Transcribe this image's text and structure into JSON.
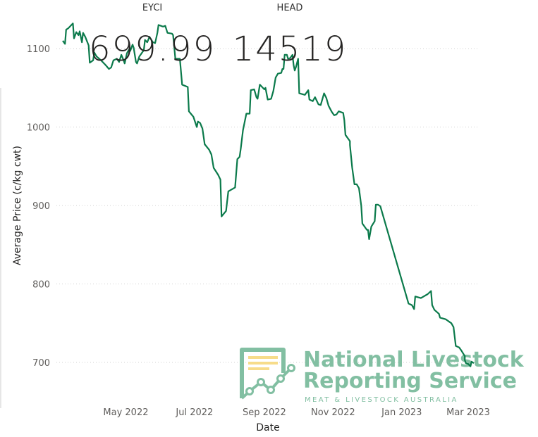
{
  "kpis": [
    {
      "label": "EYCI",
      "value": "699.99"
    },
    {
      "label": "HEAD",
      "value": "14519"
    }
  ],
  "logo": {
    "line1": "National Livestock",
    "line2": "Reporting Service",
    "tagline": "MEAT & LIVESTOCK AUSTRALIA"
  },
  "colors": {
    "line": "#0b7a4b",
    "logo": "#82bfa2",
    "logo_bars": "#f7dc8a",
    "grid": "#d0d0d0",
    "axis_text": "#605e5c"
  },
  "chart_data": {
    "type": "line",
    "xlabel": "Date",
    "ylabel": "Average Price (c/kg cwt)",
    "x_unit": "days since 2022-05-01",
    "xlim": [
      -56,
      309
    ],
    "ylim": [
      690,
      1140
    ],
    "yticks": [
      700,
      800,
      900,
      1000,
      1100
    ],
    "xticks": [
      {
        "label": "May 2022",
        "x": 0
      },
      {
        "label": "Jul 2022",
        "x": 61
      },
      {
        "label": "Sep 2022",
        "x": 123
      },
      {
        "label": "Nov 2022",
        "x": 184
      },
      {
        "label": "Jan 2023",
        "x": 245
      },
      {
        "label": "Mar 2023",
        "x": 304
      }
    ],
    "grid": true,
    "series": [
      {
        "name": "Average Price",
        "points": [
          [
            -56,
            1110
          ],
          [
            -54,
            1106
          ],
          [
            -53,
            1124
          ],
          [
            -51,
            1126
          ],
          [
            -47,
            1132
          ],
          [
            -46,
            1113
          ],
          [
            -44,
            1121
          ],
          [
            -42,
            1117
          ],
          [
            -41,
            1122
          ],
          [
            -39,
            1108
          ],
          [
            -38,
            1120
          ],
          [
            -36,
            1115
          ],
          [
            -33,
            1104
          ],
          [
            -32,
            1082
          ],
          [
            -29,
            1085
          ],
          [
            -28,
            1095
          ],
          [
            -26,
            1090
          ],
          [
            -22,
            1085
          ],
          [
            -18,
            1079
          ],
          [
            -15,
            1074
          ],
          [
            -13,
            1076
          ],
          [
            -11,
            1085
          ],
          [
            -8,
            1087
          ],
          [
            -6,
            1083
          ],
          [
            -4,
            1092
          ],
          [
            -2,
            1085
          ],
          [
            -1,
            1081
          ],
          [
            1,
            1094
          ],
          [
            3,
            1099
          ],
          [
            4,
            1097
          ],
          [
            6,
            1105
          ],
          [
            7,
            1101
          ],
          [
            9,
            1083
          ],
          [
            10,
            1081
          ],
          [
            12,
            1090
          ],
          [
            16,
            1098
          ],
          [
            17,
            1111
          ],
          [
            19,
            1108
          ],
          [
            21,
            1115
          ],
          [
            24,
            1108
          ],
          [
            26,
            1107
          ],
          [
            28,
            1120
          ],
          [
            29,
            1130
          ],
          [
            33,
            1128
          ],
          [
            35,
            1129
          ],
          [
            37,
            1120
          ],
          [
            41,
            1119
          ],
          [
            42,
            1117
          ],
          [
            44,
            1087
          ],
          [
            48,
            1087
          ],
          [
            50,
            1054
          ],
          [
            55,
            1051
          ],
          [
            56,
            1020
          ],
          [
            60,
            1013
          ],
          [
            63,
            1000
          ],
          [
            64,
            1007
          ],
          [
            66,
            1005
          ],
          [
            68,
            998
          ],
          [
            70,
            978
          ],
          [
            74,
            971
          ],
          [
            76,
            965
          ],
          [
            78,
            948
          ],
          [
            82,
            939
          ],
          [
            84,
            933
          ],
          [
            85,
            886
          ],
          [
            89,
            893
          ],
          [
            91,
            918
          ],
          [
            97,
            923
          ],
          [
            99,
            959
          ],
          [
            101,
            962
          ],
          [
            102,
            972
          ],
          [
            104,
            996
          ],
          [
            105,
            1003
          ],
          [
            107,
            1017
          ],
          [
            110,
            1017
          ],
          [
            111,
            1047
          ],
          [
            114,
            1048
          ],
          [
            116,
            1038
          ],
          [
            117,
            1036
          ],
          [
            119,
            1054
          ],
          [
            123,
            1048
          ],
          [
            124,
            1050
          ],
          [
            126,
            1035
          ],
          [
            129,
            1036
          ],
          [
            131,
            1046
          ],
          [
            133,
            1063
          ],
          [
            135,
            1068
          ],
          [
            138,
            1069
          ],
          [
            139,
            1074
          ],
          [
            140,
            1074
          ],
          [
            141,
            1092
          ],
          [
            143,
            1092
          ],
          [
            144,
            1087
          ],
          [
            146,
            1088
          ],
          [
            148,
            1092
          ],
          [
            149,
            1079
          ],
          [
            150,
            1072
          ],
          [
            151,
            1076
          ],
          [
            153,
            1087
          ],
          [
            154,
            1043
          ],
          [
            159,
            1041
          ],
          [
            162,
            1047
          ],
          [
            163,
            1035
          ],
          [
            166,
            1033
          ],
          [
            168,
            1038
          ],
          [
            171,
            1029
          ],
          [
            173,
            1028
          ],
          [
            176,
            1043
          ],
          [
            178,
            1037
          ],
          [
            180,
            1027
          ],
          [
            183,
            1019
          ],
          [
            185,
            1015
          ],
          [
            187,
            1016
          ],
          [
            189,
            1020
          ],
          [
            193,
            1018
          ],
          [
            194,
            1009
          ],
          [
            195,
            990
          ],
          [
            199,
            982
          ],
          [
            199,
            977
          ],
          [
            201,
            948
          ],
          [
            203,
            927
          ],
          [
            205,
            927
          ],
          [
            207,
            922
          ],
          [
            209,
            900
          ],
          [
            210,
            877
          ],
          [
            214,
            869
          ],
          [
            215,
            869
          ],
          [
            216,
            857
          ],
          [
            218,
            873
          ],
          [
            221,
            880
          ],
          [
            222,
            901
          ],
          [
            224,
            901
          ],
          [
            226,
            899
          ],
          [
            251,
            775
          ],
          [
            254,
            773
          ],
          [
            256,
            768
          ],
          [
            257,
            784
          ],
          [
            262,
            782
          ],
          [
            268,
            787
          ],
          [
            271,
            791
          ],
          [
            272,
            773
          ],
          [
            274,
            767
          ],
          [
            278,
            762
          ],
          [
            279,
            757
          ],
          [
            284,
            755
          ],
          [
            289,
            750
          ],
          [
            291,
            745
          ],
          [
            293,
            721
          ],
          [
            296,
            719
          ],
          [
            298,
            715
          ],
          [
            301,
            708
          ],
          [
            301,
            703
          ],
          [
            302,
            699
          ],
          [
            304,
            698
          ],
          [
            306,
            695
          ],
          [
            307,
            701
          ],
          [
            309,
            699
          ]
        ]
      }
    ]
  }
}
